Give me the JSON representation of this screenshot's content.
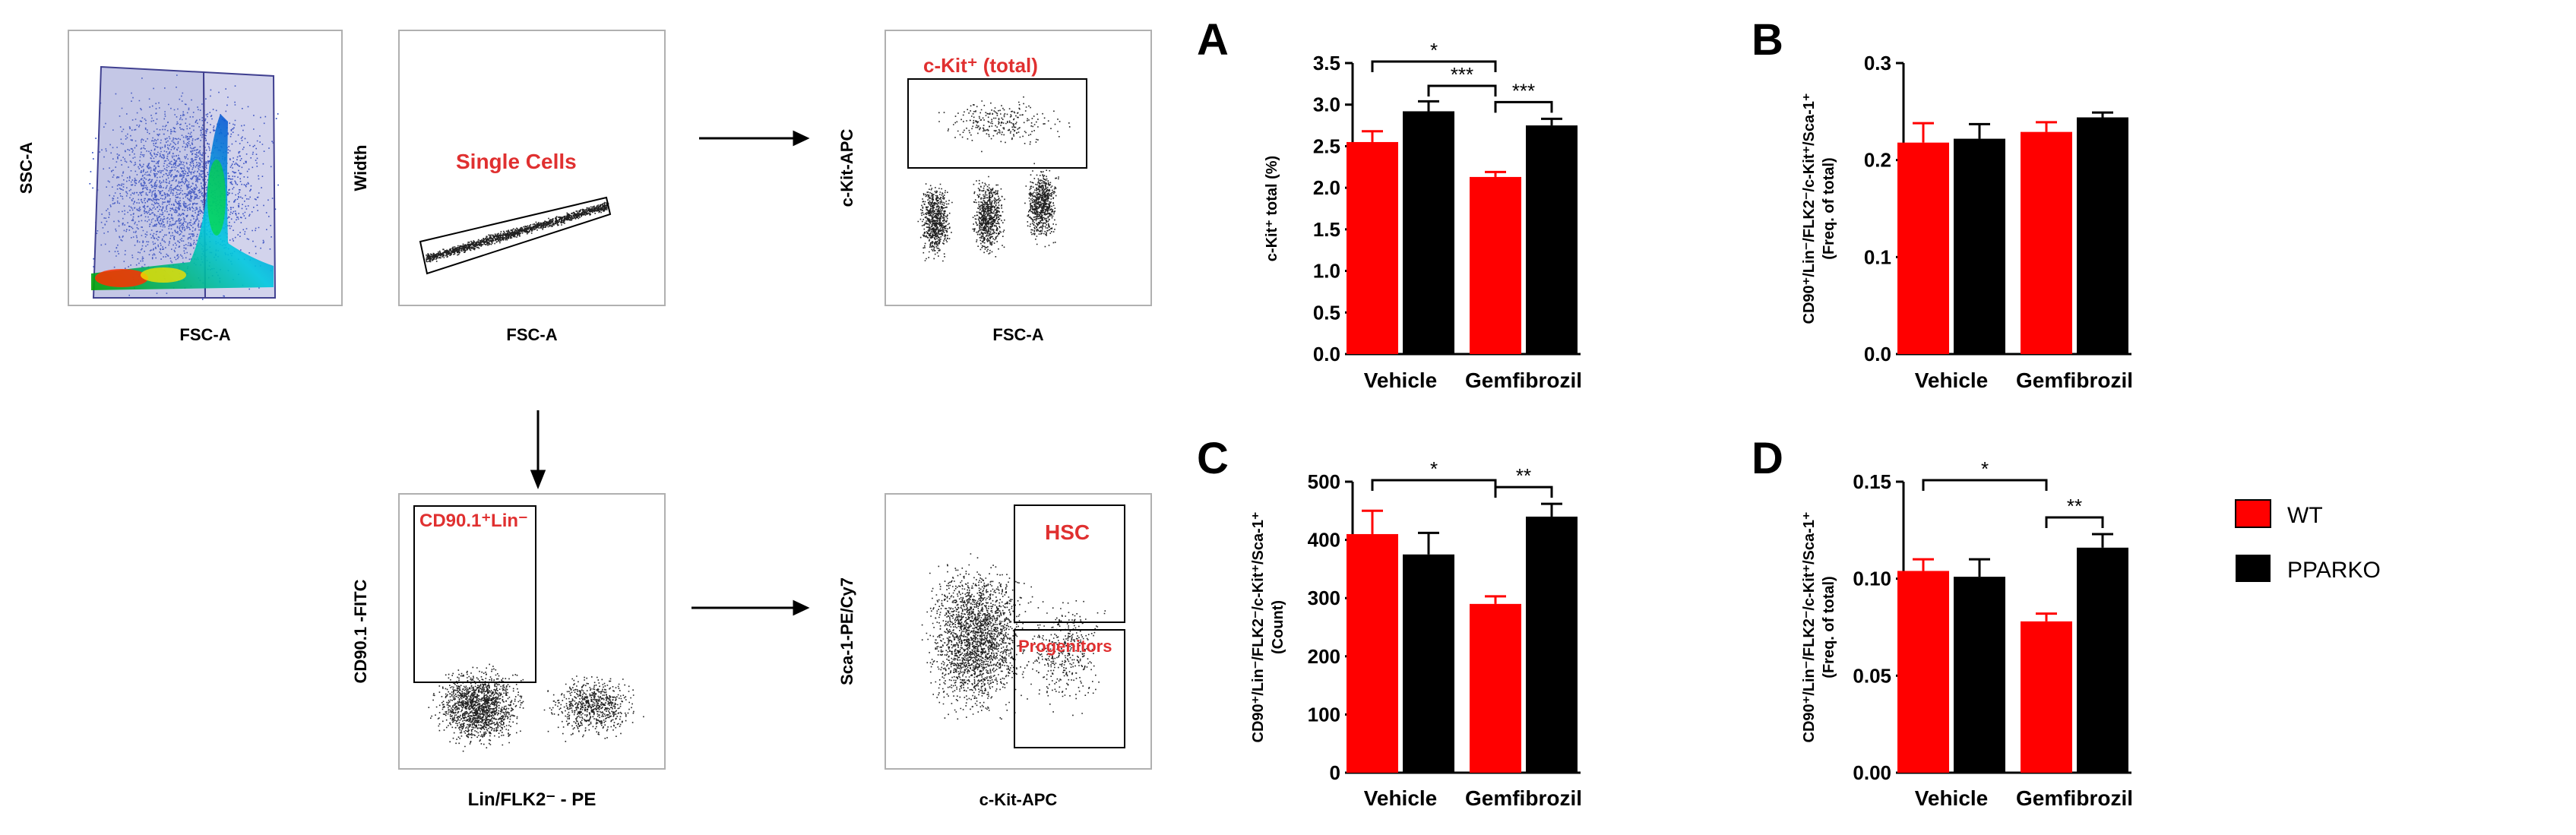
{
  "flow": {
    "plots": [
      {
        "id": "p1",
        "xlabel": "FSC-A",
        "ylabel": "SSC-A",
        "gate_label": ""
      },
      {
        "id": "p2",
        "xlabel": "FSC-A",
        "ylabel": "Width",
        "gate_label": "Single Cells"
      },
      {
        "id": "p3",
        "xlabel": "FSC-A",
        "ylabel": "c-Kit-APC",
        "gate_label": "c-Kit⁺ (total)"
      },
      {
        "id": "p4",
        "xlabel": "Lin/FLK2⁻ - PE",
        "ylabel": "CD90.1 -FITC",
        "gate_label": "CD90.1⁺Lin⁻"
      },
      {
        "id": "p5",
        "xlabel": "c-Kit-APC",
        "ylabel": "Sca-1-PE/Cy7",
        "gate_label": "HSC",
        "gate_label_2": "Progenitors"
      }
    ]
  },
  "legend": {
    "items": [
      {
        "name": "WT",
        "color": "#ff0000"
      },
      {
        "name": "PPARKO",
        "color": "#000000"
      }
    ]
  },
  "chart_data": [
    {
      "panel": "A",
      "type": "bar",
      "categories": [
        "Vehicle",
        "Gemfibrozil"
      ],
      "series": [
        {
          "name": "WT",
          "color": "#ff0000",
          "values": [
            2.55,
            2.13
          ],
          "errors": [
            0.13,
            0.06
          ]
        },
        {
          "name": "PPARKO",
          "color": "#000000",
          "values": [
            2.92,
            2.75
          ],
          "errors": [
            0.12,
            0.08
          ]
        }
      ],
      "ylabel": "c-Kit⁺ total (%)",
      "ylabel_2": "",
      "ylim": [
        0,
        3.5
      ],
      "yticks": [
        "0.0",
        "0.5",
        "1.0",
        "1.5",
        "2.0",
        "2.5",
        "3.0",
        "3.5"
      ],
      "significance": [
        {
          "from": [
            0,
            0
          ],
          "to": [
            1,
            0
          ],
          "label": "*"
        },
        {
          "from": [
            0,
            1
          ],
          "to": [
            1,
            0
          ],
          "label": "***"
        },
        {
          "from": [
            1,
            0
          ],
          "to": [
            1,
            1
          ],
          "label": "***"
        }
      ]
    },
    {
      "panel": "B",
      "type": "bar",
      "categories": [
        "Vehicle",
        "Gemfibrozil"
      ],
      "series": [
        {
          "name": "WT",
          "color": "#ff0000",
          "values": [
            0.218,
            0.229
          ],
          "errors": [
            0.02,
            0.01
          ]
        },
        {
          "name": "PPARKO",
          "color": "#000000",
          "values": [
            0.222,
            0.244
          ],
          "errors": [
            0.015,
            0.005
          ]
        }
      ],
      "ylabel": "CD90⁺/Lin⁻/FLK2⁻/c-Kit⁺/Sca-1⁺",
      "ylabel_2": "(Freq. of total)",
      "ylim": [
        0,
        0.3
      ],
      "yticks": [
        "0.0",
        "0.1",
        "0.2",
        "0.3"
      ],
      "significance": []
    },
    {
      "panel": "C",
      "type": "bar",
      "categories": [
        "Vehicle",
        "Gemfibrozil"
      ],
      "series": [
        {
          "name": "WT",
          "color": "#ff0000",
          "values": [
            410,
            290
          ],
          "errors": [
            40,
            13
          ]
        },
        {
          "name": "PPARKO",
          "color": "#000000",
          "values": [
            375,
            440
          ],
          "errors": [
            37,
            22
          ]
        }
      ],
      "ylabel": "CD90⁺/Lin⁻/FLK2⁻/c-Kit⁺/Sca-1⁺",
      "ylabel_2": "(Count)",
      "ylim": [
        0,
        500
      ],
      "yticks": [
        "0",
        "100",
        "200",
        "300",
        "400",
        "500"
      ],
      "significance": [
        {
          "from": [
            0,
            0
          ],
          "to": [
            1,
            0
          ],
          "label": "*"
        },
        {
          "from": [
            1,
            0
          ],
          "to": [
            1,
            1
          ],
          "label": "**"
        }
      ]
    },
    {
      "panel": "D",
      "type": "bar",
      "categories": [
        "Vehicle",
        "Gemfibrozil"
      ],
      "series": [
        {
          "name": "WT",
          "color": "#ff0000",
          "values": [
            0.104,
            0.078
          ],
          "errors": [
            0.006,
            0.004
          ]
        },
        {
          "name": "PPARKO",
          "color": "#000000",
          "values": [
            0.101,
            0.116
          ],
          "errors": [
            0.009,
            0.007
          ]
        }
      ],
      "ylabel": "CD90⁺/Lin⁻/FLK2⁻/c-Kit⁺/Sca-1⁺",
      "ylabel_2": "(Freq. of total)",
      "ylim": [
        0,
        0.15
      ],
      "yticks": [
        "0.00",
        "0.05",
        "0.10",
        "0.15"
      ],
      "significance": [
        {
          "from": [
            0,
            0
          ],
          "to": [
            1,
            0
          ],
          "label": "*"
        },
        {
          "from": [
            1,
            0
          ],
          "to": [
            1,
            1
          ],
          "label": "**"
        }
      ]
    }
  ]
}
